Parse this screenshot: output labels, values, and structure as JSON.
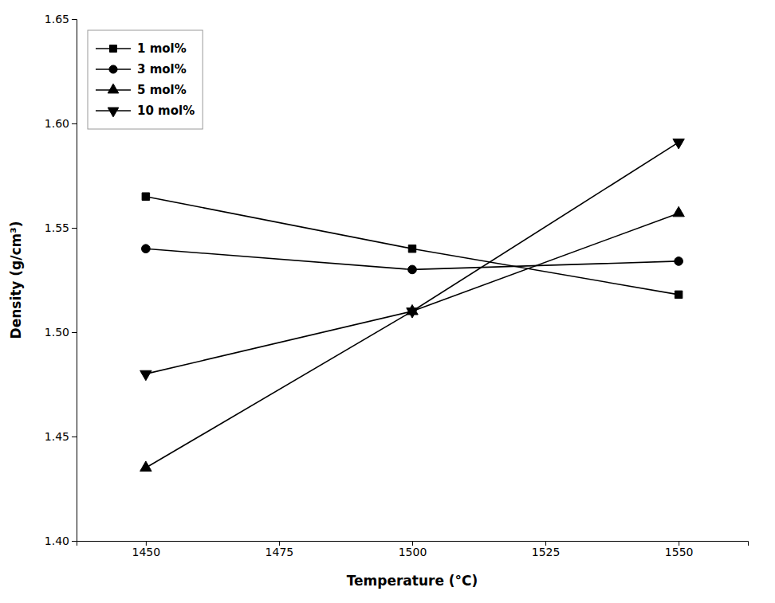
{
  "chart_data": {
    "type": "line",
    "xlabel": "Temperature (°C)",
    "ylabel": "Density (g/cm³)",
    "x": [
      1450,
      1500,
      1550
    ],
    "series": [
      {
        "name": "1 mol%",
        "color": "#000000",
        "marker": "square",
        "line_style": "solid",
        "values": [
          1.565,
          1.54,
          1.518
        ]
      },
      {
        "name": "3 mol%",
        "color": "#000000",
        "marker": "circle",
        "line_style": "solid",
        "values": [
          1.54,
          1.53,
          1.534
        ]
      },
      {
        "name": "5 mol%",
        "color": "#000000",
        "marker": "triangle-up",
        "line_style": "solid",
        "values": [
          1.435,
          1.51,
          1.557
        ]
      },
      {
        "name": "10 mol%",
        "color": "#000000",
        "marker": "triangle-down",
        "line_style": "solid",
        "values": [
          1.48,
          1.51,
          1.591
        ]
      }
    ],
    "xlim": [
      1437,
      1563
    ],
    "ylim": [
      1.4,
      1.65
    ],
    "xticks": [
      1450,
      1475,
      1500,
      1525,
      1550
    ],
    "yticks": [
      {
        "value": 1.4,
        "label": "1.40"
      },
      1.45,
      {
        "value": 1.5,
        "label": "1.50"
      },
      1.55,
      {
        "value": 1.6,
        "label": "1.60"
      },
      1.65
    ],
    "grid": false,
    "legend": "upper left"
  }
}
